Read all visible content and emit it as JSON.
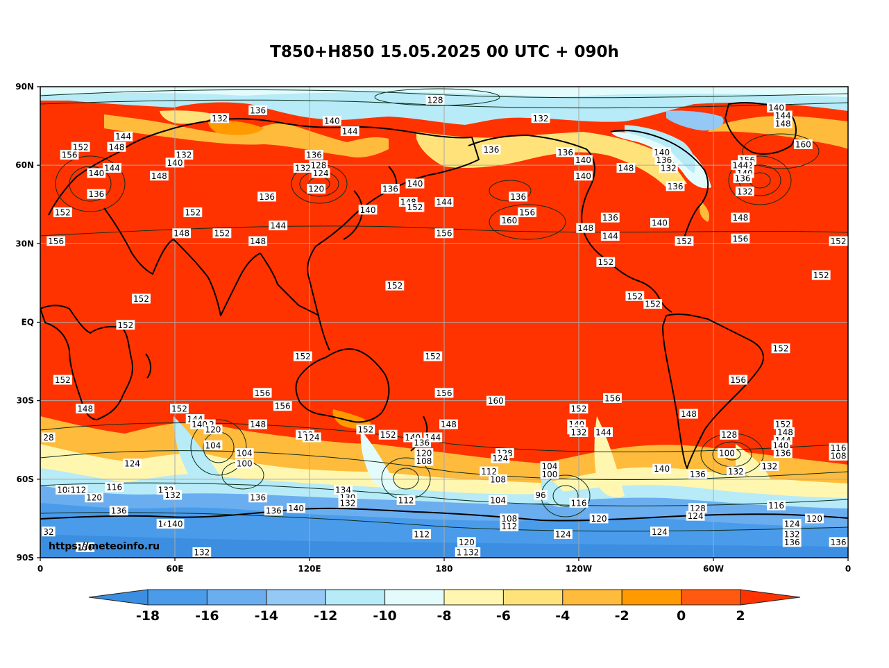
{
  "title": "T850+H850 15.05.2025 00 UTC + 090h",
  "credit": "https://meteoinfo.ru",
  "lat_labels": [
    "90N",
    "60N",
    "30N",
    "EQ",
    "30S",
    "60S",
    "90S"
  ],
  "lon_labels": [
    "0",
    "60E",
    "120E",
    "180",
    "120W",
    "60W",
    "0"
  ],
  "colorbar": {
    "ticks": [
      "-18",
      "-16",
      "-14",
      "-12",
      "-10",
      "-8",
      "-6",
      "-4",
      "-2",
      "0",
      "2"
    ],
    "colors": [
      "#3b8ee0",
      "#4a9bea",
      "#6aaef0",
      "#94c8f5",
      "#b7ebf7",
      "#e4fbfb",
      "#fff7b0",
      "#ffe37a",
      "#ffbb3c",
      "#ff9a00",
      "#ff5a10",
      "#ff3300"
    ]
  },
  "height_labels": [
    {
      "t": "128",
      "lon": 176,
      "lat": 85
    },
    {
      "t": "136",
      "lon": 97,
      "lat": 81
    },
    {
      "t": "132",
      "lon": 80,
      "lat": 78
    },
    {
      "t": "140",
      "lon": 130,
      "lat": 77
    },
    {
      "t": "144",
      "lon": 138,
      "lat": 73
    },
    {
      "t": "132",
      "lon": -137,
      "lat": 78
    },
    {
      "t": "140",
      "lon": -32,
      "lat": 82
    },
    {
      "t": "144",
      "lon": -29,
      "lat": 79
    },
    {
      "t": "148",
      "lon": -29,
      "lat": 76
    },
    {
      "t": "160",
      "lon": -20,
      "lat": 68
    },
    {
      "t": "144",
      "lon": 37,
      "lat": 71
    },
    {
      "t": "148",
      "lon": 34,
      "lat": 67
    },
    {
      "t": "152",
      "lon": 18,
      "lat": 67
    },
    {
      "t": "156",
      "lon": 13,
      "lat": 64
    },
    {
      "t": "132",
      "lon": 64,
      "lat": 64
    },
    {
      "t": "140",
      "lon": 60,
      "lat": 61
    },
    {
      "t": "144",
      "lon": 32,
      "lat": 59
    },
    {
      "t": "140",
      "lon": 25,
      "lat": 57
    },
    {
      "t": "148",
      "lon": 53,
      "lat": 56
    },
    {
      "t": "136",
      "lon": 25,
      "lat": 49
    },
    {
      "t": "152",
      "lon": 10,
      "lat": 42
    },
    {
      "t": "156",
      "lon": 7,
      "lat": 31
    },
    {
      "t": "136",
      "lon": 122,
      "lat": 64
    },
    {
      "t": "128",
      "lon": 124,
      "lat": 60
    },
    {
      "t": "132",
      "lon": 117,
      "lat": 59
    },
    {
      "t": "124",
      "lon": 125,
      "lat": 57
    },
    {
      "t": "120",
      "lon": 123,
      "lat": 51
    },
    {
      "t": "136",
      "lon": 101,
      "lat": 48
    },
    {
      "t": "152",
      "lon": 68,
      "lat": 42
    },
    {
      "t": "144",
      "lon": 106,
      "lat": 37
    },
    {
      "t": "148",
      "lon": 63,
      "lat": 34
    },
    {
      "t": "152",
      "lon": 81,
      "lat": 34
    },
    {
      "t": "148",
      "lon": 97,
      "lat": 31
    },
    {
      "t": "140",
      "lon": 146,
      "lat": 43
    },
    {
      "t": "136",
      "lon": 156,
      "lat": 51
    },
    {
      "t": "140",
      "lon": 167,
      "lat": 53
    },
    {
      "t": "148",
      "lon": 164,
      "lat": 46
    },
    {
      "t": "152",
      "lon": 167,
      "lat": 44
    },
    {
      "t": "144",
      "lon": 180,
      "lat": 46
    },
    {
      "t": "136",
      "lon": -159,
      "lat": 66
    },
    {
      "t": "136",
      "lon": -126,
      "lat": 65
    },
    {
      "t": "140",
      "lon": -118,
      "lat": 62
    },
    {
      "t": "148",
      "lon": -99,
      "lat": 59
    },
    {
      "t": "140",
      "lon": -118,
      "lat": 56
    },
    {
      "t": "136",
      "lon": -147,
      "lat": 48
    },
    {
      "t": "156",
      "lon": -143,
      "lat": 42
    },
    {
      "t": "160",
      "lon": -151,
      "lat": 39
    },
    {
      "t": "156",
      "lon": 180,
      "lat": 34
    },
    {
      "t": "148",
      "lon": -117,
      "lat": 36
    },
    {
      "t": "136",
      "lon": -106,
      "lat": 40
    },
    {
      "t": "144",
      "lon": -106,
      "lat": 33
    },
    {
      "t": "152",
      "lon": -108,
      "lat": 23
    },
    {
      "t": "140",
      "lon": -83,
      "lat": 65
    },
    {
      "t": "136",
      "lon": -82,
      "lat": 62
    },
    {
      "t": "132",
      "lon": -80,
      "lat": 59
    },
    {
      "t": "136",
      "lon": -77,
      "lat": 52
    },
    {
      "t": "140",
      "lon": -84,
      "lat": 38
    },
    {
      "t": "152",
      "lon": -73,
      "lat": 31
    },
    {
      "t": "156",
      "lon": -45,
      "lat": 62
    },
    {
      "t": "152",
      "lon": -46,
      "lat": 60
    },
    {
      "t": "144",
      "lon": -48,
      "lat": 60
    },
    {
      "t": "140",
      "lon": -46,
      "lat": 57
    },
    {
      "t": "136",
      "lon": -47,
      "lat": 55
    },
    {
      "t": "132",
      "lon": -46,
      "lat": 50
    },
    {
      "t": "148",
      "lon": -48,
      "lat": 40
    },
    {
      "t": "156",
      "lon": -48,
      "lat": 32
    },
    {
      "t": "152",
      "lon": -3,
      "lat": 31
    },
    {
      "t": "152",
      "lon": -12,
      "lat": 18
    },
    {
      "t": "152",
      "lon": 158,
      "lat": 14
    },
    {
      "t": "152",
      "lon": 45,
      "lat": 9
    },
    {
      "t": "152",
      "lon": 38,
      "lat": -1
    },
    {
      "t": "152",
      "lon": -95,
      "lat": 10
    },
    {
      "t": "152",
      "lon": -87,
      "lat": 7
    },
    {
      "t": "152",
      "lon": 117,
      "lat": -13
    },
    {
      "t": "152",
      "lon": 175,
      "lat": -13
    },
    {
      "t": "152",
      "lon": -30,
      "lat": -10
    },
    {
      "t": "152",
      "lon": 10,
      "lat": -22
    },
    {
      "t": "156",
      "lon": -49,
      "lat": -22
    },
    {
      "t": "156",
      "lon": 99,
      "lat": -27
    },
    {
      "t": "156",
      "lon": 180,
      "lat": -27
    },
    {
      "t": "160",
      "lon": -157,
      "lat": -30
    },
    {
      "t": "156",
      "lon": -105,
      "lat": -29
    },
    {
      "t": "156",
      "lon": 108,
      "lat": -32
    },
    {
      "t": "152",
      "lon": -120,
      "lat": -33
    },
    {
      "t": "148",
      "lon": 20,
      "lat": -33
    },
    {
      "t": "152",
      "lon": 62,
      "lat": -33
    },
    {
      "t": "148",
      "lon": -71,
      "lat": -35
    },
    {
      "t": "144",
      "lon": 69,
      "lat": -37
    },
    {
      "t": "152",
      "lon": 74,
      "lat": -39
    },
    {
      "t": "140",
      "lon": 71,
      "lat": -39
    },
    {
      "t": "120",
      "lon": 77,
      "lat": -41
    },
    {
      "t": "148",
      "lon": 97,
      "lat": -39
    },
    {
      "t": "148",
      "lon": 182,
      "lat": -39
    },
    {
      "t": "152",
      "lon": 145,
      "lat": -41
    },
    {
      "t": "152",
      "lon": 155,
      "lat": -43
    },
    {
      "t": "128",
      "lon": 118,
      "lat": -43
    },
    {
      "t": "124",
      "lon": 121,
      "lat": -44
    },
    {
      "t": "140",
      "lon": -121,
      "lat": -39
    },
    {
      "t": "136",
      "lon": -121,
      "lat": -41
    },
    {
      "t": "132",
      "lon": -120,
      "lat": -42
    },
    {
      "t": "144",
      "lon": -109,
      "lat": -42
    },
    {
      "t": "152",
      "lon": -29,
      "lat": -39
    },
    {
      "t": "148",
      "lon": -28,
      "lat": -42
    },
    {
      "t": "144",
      "lon": -29,
      "lat": -45
    },
    {
      "t": "140",
      "lon": -30,
      "lat": -47
    },
    {
      "t": "136",
      "lon": -29,
      "lat": -50
    },
    {
      "t": "128",
      "lon": -53,
      "lat": -43
    },
    {
      "t": "100",
      "lon": -54,
      "lat": -50
    },
    {
      "t": "132",
      "lon": -35,
      "lat": -55
    },
    {
      "t": "132",
      "lon": -50,
      "lat": -57
    },
    {
      "t": "136",
      "lon": -67,
      "lat": -58
    },
    {
      "t": "140",
      "lon": -83,
      "lat": -56
    },
    {
      "t": "28",
      "lon": 2,
      "lat": -44
    },
    {
      "t": "124",
      "lon": 41,
      "lat": -54
    },
    {
      "t": "104",
      "lon": 77,
      "lat": -47
    },
    {
      "t": "104",
      "lon": 91,
      "lat": -50
    },
    {
      "t": "100",
      "lon": 91,
      "lat": -54
    },
    {
      "t": "140",
      "lon": 166,
      "lat": -44
    },
    {
      "t": "144",
      "lon": 175,
      "lat": -44
    },
    {
      "t": "136",
      "lon": 170,
      "lat": -46
    },
    {
      "t": "120",
      "lon": 171,
      "lat": -50
    },
    {
      "t": "108",
      "lon": 171,
      "lat": -53
    },
    {
      "t": "128",
      "lon": -153,
      "lat": -50
    },
    {
      "t": "124",
      "lon": -155,
      "lat": -52
    },
    {
      "t": "104",
      "lon": -133,
      "lat": -55
    },
    {
      "t": "100",
      "lon": -133,
      "lat": -58
    },
    {
      "t": "112",
      "lon": 200,
      "lat": -57
    },
    {
      "t": "108",
      "lon": 204,
      "lat": -60
    },
    {
      "t": "96",
      "lon": -137,
      "lat": -66
    },
    {
      "t": "104",
      "lon": -156,
      "lat": -68
    },
    {
      "t": "116",
      "lon": -120,
      "lat": -69
    },
    {
      "t": "120",
      "lon": -111,
      "lat": -75
    },
    {
      "t": "108",
      "lon": -151,
      "lat": -75
    },
    {
      "t": "112",
      "lon": -151,
      "lat": -78
    },
    {
      "t": "124",
      "lon": -127,
      "lat": -81
    },
    {
      "t": "124",
      "lon": -84,
      "lat": -80
    },
    {
      "t": "128",
      "lon": -67,
      "lat": -71
    },
    {
      "t": "124",
      "lon": -68,
      "lat": -74
    },
    {
      "t": "116",
      "lon": -32,
      "lat": -70
    },
    {
      "t": "124",
      "lon": -25,
      "lat": -77
    },
    {
      "t": "120",
      "lon": -15,
      "lat": -75
    },
    {
      "t": "132",
      "lon": -25,
      "lat": -81
    },
    {
      "t": "136",
      "lon": -25,
      "lat": -84
    },
    {
      "t": "136",
      "lon": -3,
      "lat": -84
    },
    {
      "t": "116",
      "lon": -3,
      "lat": -48
    },
    {
      "t": "108",
      "lon": -3,
      "lat": -51
    },
    {
      "t": "108",
      "lon": 11,
      "lat": -64
    },
    {
      "t": "112",
      "lon": 17,
      "lat": -64
    },
    {
      "t": "120",
      "lon": 24,
      "lat": -67
    },
    {
      "t": "116",
      "lon": 33,
      "lat": -63
    },
    {
      "t": "136",
      "lon": 35,
      "lat": -72
    },
    {
      "t": "132",
      "lon": 56,
      "lat": -64
    },
    {
      "t": "132",
      "lon": 59,
      "lat": -66
    },
    {
      "t": "136",
      "lon": 97,
      "lat": -67
    },
    {
      "t": "136",
      "lon": 104,
      "lat": -72
    },
    {
      "t": "140",
      "lon": 114,
      "lat": -71
    },
    {
      "t": "140",
      "lon": 56,
      "lat": -77
    },
    {
      "t": "140",
      "lon": 60,
      "lat": -77
    },
    {
      "t": "32",
      "lon": 2,
      "lat": -80
    },
    {
      "t": "136",
      "lon": 20,
      "lat": -86
    },
    {
      "t": "132",
      "lon": 72,
      "lat": -89
    },
    {
      "t": "134",
      "lon": 135,
      "lat": -64
    },
    {
      "t": "130",
      "lon": 137,
      "lat": -67
    },
    {
      "t": "132",
      "lon": 137,
      "lat": -69
    },
    {
      "t": "112",
      "lon": 163,
      "lat": -68
    },
    {
      "t": "112",
      "lon": 170,
      "lat": -81
    },
    {
      "t": "120",
      "lon": 190,
      "lat": -84
    },
    {
      "t": "128",
      "lon": 189,
      "lat": -88
    },
    {
      "t": "132",
      "lon": 192,
      "lat": -88
    }
  ]
}
